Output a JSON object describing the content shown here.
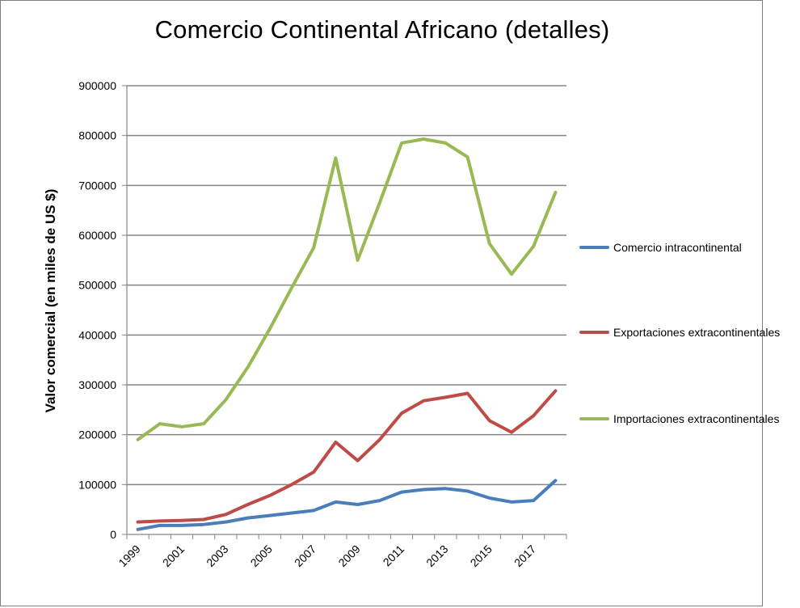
{
  "chart_data": {
    "type": "line",
    "title": "Comercio Continental Africano (detalles)",
    "ylabel": "Valor comercial (en miles de US $)",
    "xlabel": "",
    "x": [
      1999,
      2000,
      2001,
      2002,
      2003,
      2004,
      2005,
      2006,
      2007,
      2008,
      2009,
      2010,
      2011,
      2012,
      2013,
      2014,
      2015,
      2016,
      2017,
      2018
    ],
    "x_tick_labels": [
      "1999",
      "2001",
      "2003",
      "2005",
      "2007",
      "2009",
      "2011",
      "2013",
      "2015",
      "2017"
    ],
    "y_tick_labels": [
      "0",
      "100000",
      "200000",
      "300000",
      "400000",
      "500000",
      "600000",
      "700000",
      "800000",
      "900000"
    ],
    "ylim": [
      0,
      900000
    ],
    "grid": true,
    "legend_position": "right",
    "series": [
      {
        "name": "Comercio intracontinental",
        "color": "#4a7ebb",
        "values": [
          10000,
          18000,
          18000,
          20000,
          25000,
          33000,
          38000,
          43000,
          48000,
          65000,
          60000,
          68000,
          85000,
          90000,
          92000,
          87000,
          73000,
          65000,
          68000,
          108000
        ]
      },
      {
        "name": "Exportaciones extracontinentales",
        "color": "#be4b48",
        "values": [
          25000,
          27000,
          28000,
          30000,
          40000,
          60000,
          78000,
          100000,
          125000,
          185000,
          148000,
          190000,
          243000,
          268000,
          275000,
          283000,
          228000,
          205000,
          238000,
          288000
        ]
      },
      {
        "name": "Importaciones extracontinentales",
        "color": "#98b954",
        "values": [
          190000,
          222000,
          216000,
          222000,
          270000,
          335000,
          412000,
          495000,
          575000,
          755000,
          550000,
          665000,
          785000,
          793000,
          785000,
          757000,
          583000,
          522000,
          578000,
          686000
        ]
      }
    ]
  }
}
